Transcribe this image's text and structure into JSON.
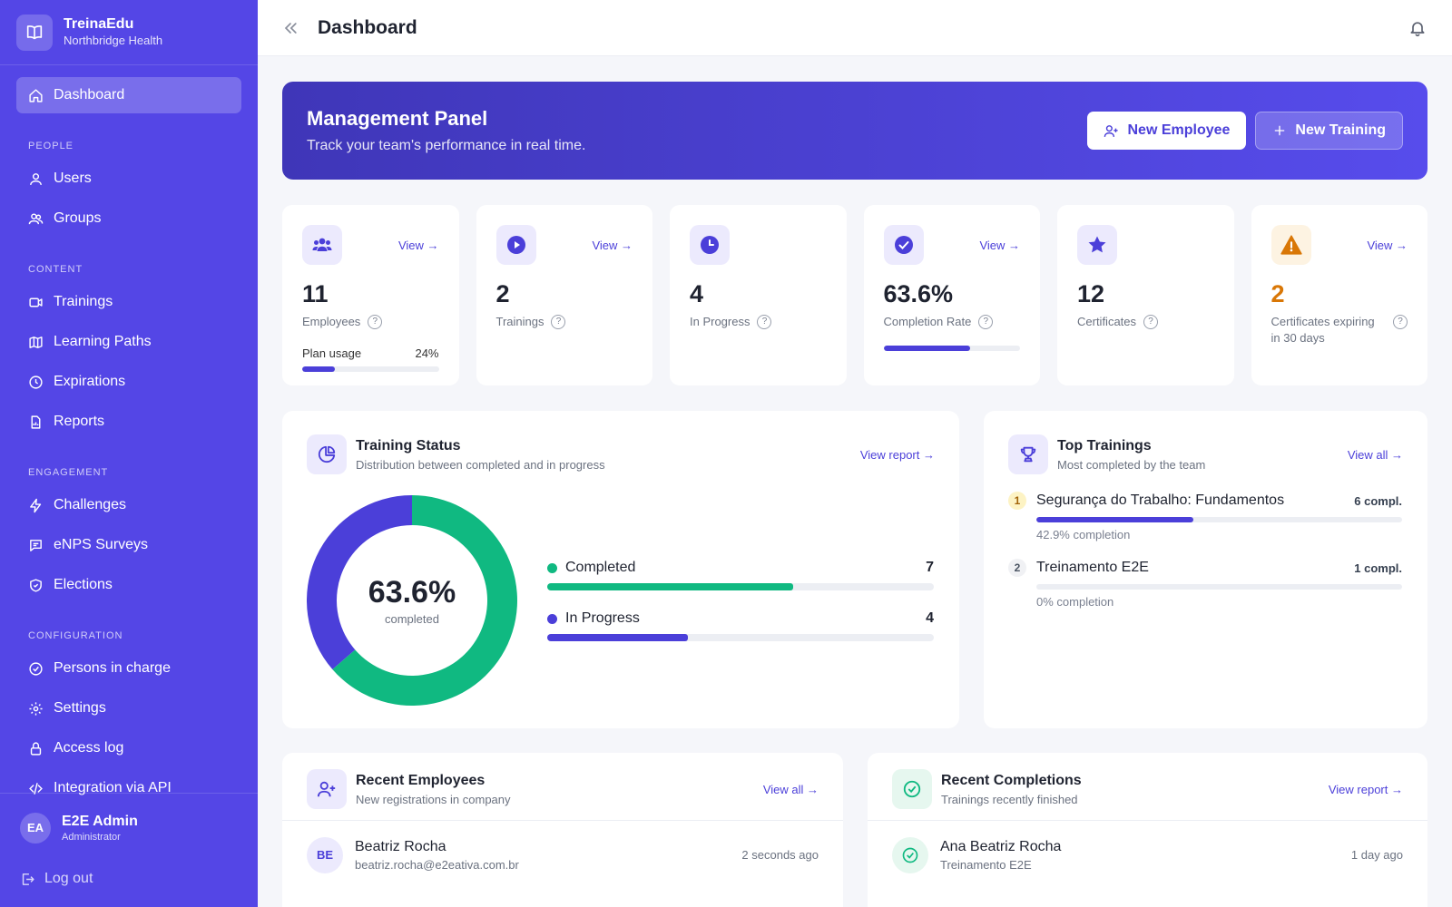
{
  "brand": {
    "name": "TreinaEdu",
    "org": "Northbridge Health"
  },
  "nav": {
    "dashboard": "Dashboard",
    "sections": {
      "people": "PEOPLE",
      "content": "CONTENT",
      "engagement": "ENGAGEMENT",
      "configuration": "CONFIGURATION"
    },
    "users": "Users",
    "groups": "Groups",
    "trainings": "Trainings",
    "learning_paths": "Learning Paths",
    "expirations": "Expirations",
    "reports": "Reports",
    "challenges": "Challenges",
    "enps": "eNPS Surveys",
    "elections": "Elections",
    "persons": "Persons in charge",
    "settings": "Settings",
    "access_log": "Access log",
    "api": "Integration via API"
  },
  "user": {
    "initials": "EA",
    "name": "E2E Admin",
    "role": "Administrator",
    "logout": "Log out"
  },
  "header": {
    "title": "Dashboard"
  },
  "hero": {
    "title": "Management Panel",
    "subtitle": "Track your team's performance in real time.",
    "new_employee": "New Employee",
    "new_training": "New Training"
  },
  "stats": [
    {
      "icon": "users-icon",
      "value": "11",
      "label": "Employees",
      "link": "View →",
      "plan_label": "Plan usage",
      "plan_value": "24%",
      "plan_fraction": 0.24
    },
    {
      "icon": "play-icon",
      "value": "2",
      "label": "Trainings",
      "link": "View →"
    },
    {
      "icon": "clock-icon",
      "value": "4",
      "label": "In Progress"
    },
    {
      "icon": "check-icon",
      "value": "63.6%",
      "label": "Completion Rate",
      "link": "View →",
      "progress_fraction": 0.636
    },
    {
      "icon": "star-icon",
      "value": "12",
      "label": "Certificates"
    },
    {
      "icon": "warning-icon",
      "value": "2",
      "label": "Certificates expiring in 30 days",
      "link": "View →"
    }
  ],
  "status": {
    "title": "Training Status",
    "subtitle": "Distribution between completed and in progress",
    "link": "View report →",
    "center_value": "63.6%",
    "center_label": "completed",
    "completed_label": "Completed",
    "completed_count": "7",
    "progress_label": "In Progress",
    "progress_count": "4"
  },
  "chart_data": {
    "type": "pie",
    "categories": [
      "Completed",
      "In Progress"
    ],
    "values": [
      7,
      4
    ],
    "colors": [
      "#10b981",
      "#4b3fd9"
    ]
  },
  "top": {
    "title": "Top Trainings",
    "subtitle": "Most completed by the team",
    "link": "View all →",
    "items": [
      {
        "rank": "1",
        "name": "Segurança do Trabalho: Fundamentos",
        "count": "6 compl.",
        "sub": "42.9% completion",
        "fraction": 0.429
      },
      {
        "rank": "2",
        "name": "Treinamento E2E",
        "count": "1 compl.",
        "sub": "0% completion",
        "fraction": 0
      }
    ]
  },
  "recent_employees": {
    "title": "Recent Employees",
    "subtitle": "New registrations in company",
    "link": "View all →",
    "rows": [
      {
        "initials": "BE",
        "name": "Beatriz Rocha",
        "email": "beatriz.rocha@e2eativa.com.br",
        "time": "2 seconds ago"
      }
    ]
  },
  "recent_completions": {
    "title": "Recent Completions",
    "subtitle": "Trainings recently finished",
    "link": "View report →",
    "rows": [
      {
        "name": "Ana Beatriz Rocha",
        "training": "Treinamento E2E",
        "time": "1 day ago"
      }
    ]
  },
  "colors": {
    "primary": "#4b3fd9",
    "sidebar": "#5446e6",
    "success": "#10b981",
    "warning": "#d97706"
  }
}
